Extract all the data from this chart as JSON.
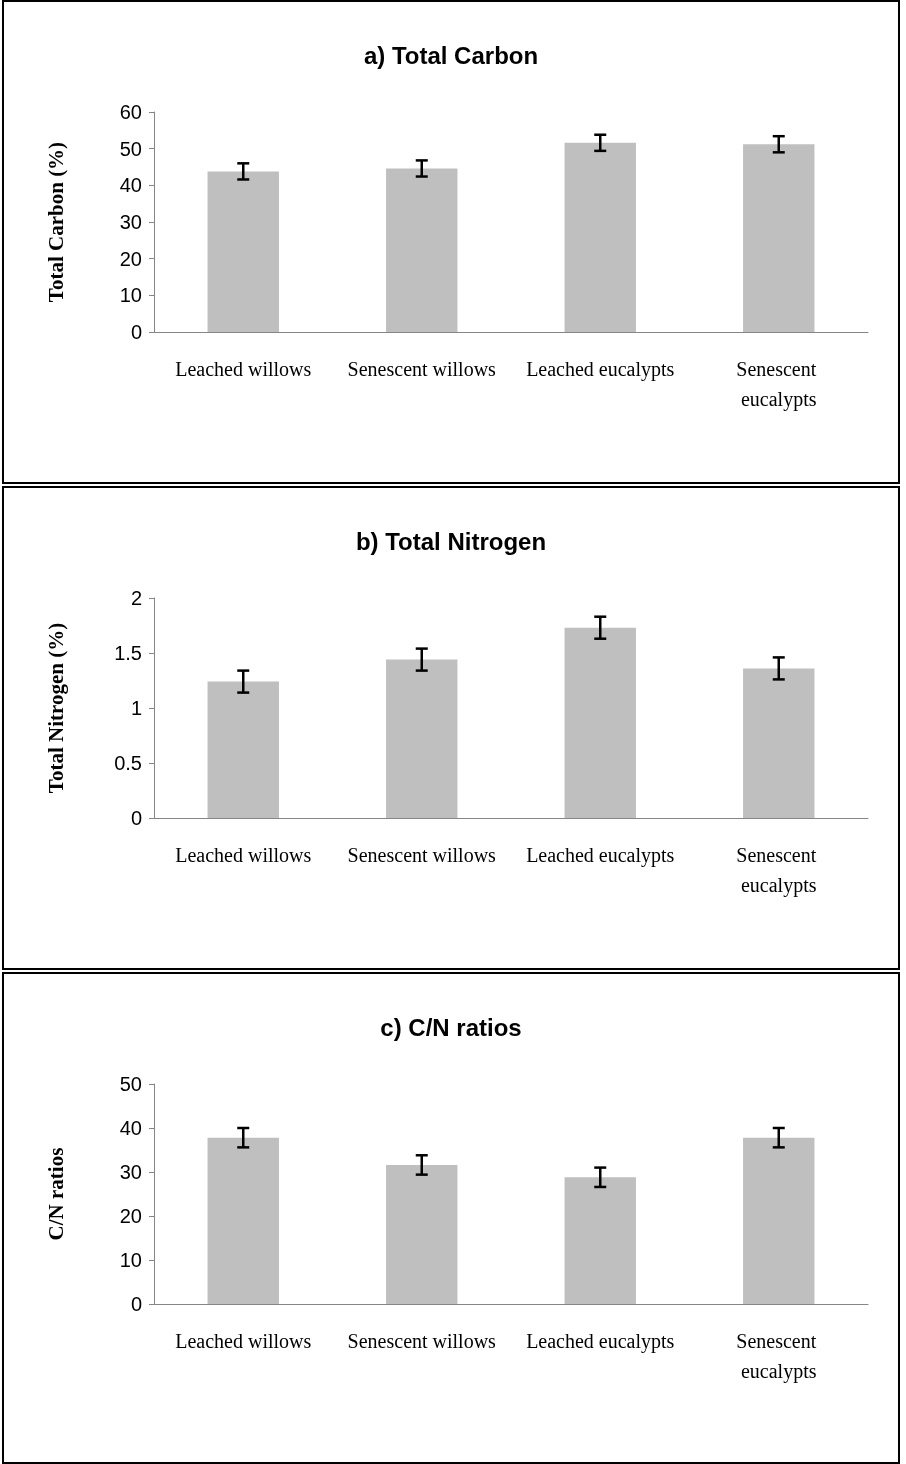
{
  "chart_data": [
    {
      "type": "bar",
      "title": "a) Total Carbon",
      "ylabel": "Total Carbon (%)",
      "categories": [
        "Leached willows",
        "Senescent willows",
        "Leached eucalypts",
        "Senescent eucalypts"
      ],
      "values": [
        43.8,
        44.6,
        51.6,
        51.2
      ],
      "errors": [
        2.2,
        2.2,
        2.2,
        2.2
      ],
      "color": "#bfbfbf",
      "ylim": [
        0,
        60
      ],
      "yticks": [
        0,
        10,
        20,
        30,
        40,
        50,
        60
      ]
    },
    {
      "type": "bar",
      "title": "b) Total Nitrogen",
      "ylabel": "Total Nitrogen (%)",
      "categories": [
        "Leached willows",
        "Senescent willows",
        "Leached eucalypts",
        "Senescent eucalypts"
      ],
      "values": [
        1.24,
        1.44,
        1.73,
        1.36
      ],
      "errors": [
        0.1,
        0.1,
        0.1,
        0.1
      ],
      "color": "#bfbfbf",
      "ylim": [
        0,
        2
      ],
      "yticks": [
        0,
        0.5,
        1,
        1.5,
        2
      ]
    },
    {
      "type": "bar",
      "title": "c) C/N ratios",
      "ylabel": "C/N ratios",
      "categories": [
        "Leached willows",
        "Senescent willows",
        "Leached eucalypts",
        "Senescent eucalypts"
      ],
      "values": [
        37.8,
        31.6,
        28.8,
        37.8
      ],
      "errors": [
        2.2,
        2.2,
        2.2,
        2.2
      ],
      "color": "#bfbfbf",
      "ylim": [
        0,
        50
      ],
      "yticks": [
        0,
        10,
        20,
        30,
        40,
        50
      ]
    }
  ]
}
